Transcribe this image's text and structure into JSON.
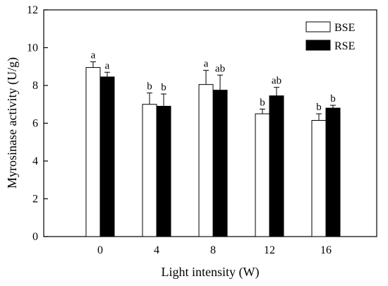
{
  "chart_data": {
    "type": "bar",
    "xlabel": "Light intensity (W)",
    "ylabel": "Myrosinase activity (U/g)",
    "categories": [
      "0",
      "4",
      "8",
      "12",
      "16"
    ],
    "ylim": [
      0,
      12
    ],
    "yticks": [
      0,
      2,
      4,
      6,
      8,
      10,
      12
    ],
    "grid": false,
    "legend_position": "top-right",
    "series": [
      {
        "name": "BSE",
        "fill": "#ffffff",
        "stroke": "#000000",
        "values": [
          8.95,
          7.0,
          8.05,
          6.5,
          6.15
        ],
        "errors": [
          0.3,
          0.6,
          0.75,
          0.25,
          0.35
        ],
        "labels": [
          "a",
          "b",
          "a",
          "b",
          "b"
        ]
      },
      {
        "name": "RSE",
        "fill": "#000000",
        "stroke": "#000000",
        "values": [
          8.45,
          6.9,
          7.75,
          7.45,
          6.8
        ],
        "errors": [
          0.25,
          0.65,
          0.8,
          0.45,
          0.15
        ],
        "labels": [
          "a",
          "b",
          "ab",
          "ab",
          "b"
        ]
      }
    ]
  }
}
